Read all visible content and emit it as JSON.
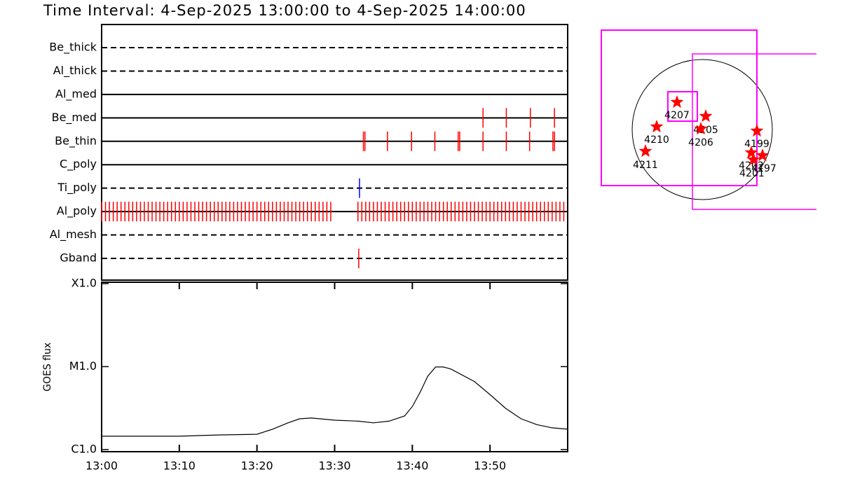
{
  "chart_data": [
    {
      "type": "timeline",
      "title": "Time Interval:  4-Sep-2025 13:00:00 to  4-Sep-2025 14:00:00",
      "xlim": [
        0,
        60
      ],
      "rows": [
        {
          "name": "Be_thick",
          "line": "dashed",
          "color": "#ff0000",
          "times": []
        },
        {
          "name": "Al_thick",
          "line": "dashed",
          "color": "#ff0000",
          "times": []
        },
        {
          "name": "Al_med",
          "line": "solid",
          "color": "#ff0000",
          "times": []
        },
        {
          "name": "Be_med",
          "line": "solid",
          "color": "#ff0000",
          "times": [
            49.1,
            52.1,
            55.2,
            58.3
          ]
        },
        {
          "name": "Be_thin",
          "line": "solid",
          "color": "#ff0000",
          "times": [
            33.7,
            33.9,
            36.8,
            39.9,
            42.9,
            45.9,
            46.1,
            49.1,
            52.1,
            55.1,
            58.1,
            58.3
          ]
        },
        {
          "name": "C_poly",
          "line": "solid",
          "color": "#ff0000",
          "times": []
        },
        {
          "name": "Ti_poly",
          "line": "dashed",
          "color": "#0000ff",
          "times": [
            33.2
          ]
        },
        {
          "name": "Al_poly",
          "line": "solid",
          "color": "#ff0000",
          "times": [
            0,
            0.5,
            1,
            1.5,
            2,
            2.5,
            3,
            3.5,
            4,
            4.5,
            5,
            5.5,
            6,
            6.5,
            7,
            7.5,
            8,
            8.5,
            9,
            9.5,
            10,
            10.5,
            11,
            11.5,
            12,
            12.5,
            13,
            13.5,
            14,
            14.5,
            15,
            15.5,
            16,
            16.5,
            17,
            17.5,
            18,
            18.5,
            19,
            19.5,
            20,
            20.5,
            21,
            21.5,
            22,
            22.5,
            23,
            23.5,
            24,
            24.5,
            25,
            25.5,
            26,
            26.5,
            27,
            27.5,
            28,
            28.5,
            29,
            29.5,
            33,
            33.5,
            34,
            34.5,
            35,
            35.5,
            36,
            36.5,
            37,
            37.5,
            38,
            38.5,
            39,
            39.5,
            40,
            40.5,
            41,
            41.5,
            42,
            42.5,
            43,
            43.5,
            44,
            44.5,
            45,
            45.5,
            46,
            46.5,
            47,
            47.5,
            48,
            48.5,
            49,
            49.5,
            50,
            50.5,
            51,
            51.5,
            52,
            52.5,
            53,
            53.5,
            54,
            54.5,
            55,
            55.5,
            56,
            56.5,
            57,
            57.5,
            58,
            58.5,
            59,
            59.5
          ]
        },
        {
          "name": "Al_mesh",
          "line": "dashed",
          "color": "#ff0000",
          "times": []
        },
        {
          "name": "Gband",
          "line": "dashed",
          "color": "#ff0000",
          "times": [
            33.1
          ]
        }
      ]
    },
    {
      "type": "line",
      "ylabel": "GOES flux",
      "log": true,
      "xlim": [
        0,
        60
      ],
      "xticks": [
        {
          "value": 0,
          "label": "13:00"
        },
        {
          "value": 10,
          "label": "13:10"
        },
        {
          "value": 20,
          "label": "13:20"
        },
        {
          "value": 30,
          "label": "13:30"
        },
        {
          "value": 40,
          "label": "13:40"
        },
        {
          "value": 50,
          "label": "13:50"
        }
      ],
      "ylim": [
        1e-06,
        0.0001
      ],
      "yticks": [
        {
          "value": 1e-06,
          "label": "C1.0"
        },
        {
          "value": 1e-05,
          "label": "M1.0"
        },
        {
          "value": 0.0001,
          "label": "X1.0"
        }
      ],
      "x": [
        0,
        10,
        15,
        20,
        22,
        24,
        25.5,
        27,
        30,
        33,
        35,
        37,
        39,
        40,
        41,
        42,
        43,
        44,
        45,
        48,
        50,
        52,
        54,
        56,
        58,
        60
      ],
      "series": [
        {
          "color": "#000000",
          "values": [
            1.45e-06,
            1.45e-06,
            1.5e-06,
            1.53e-06,
            1.76e-06,
            2.1e-06,
            2.35e-06,
            2.4e-06,
            2.26e-06,
            2.2e-06,
            2.1e-06,
            2.2e-06,
            2.54e-06,
            3.3e-06,
            4.9e-06,
            7.7e-06,
            9.9e-06,
            9.9e-06,
            9.3e-06,
            6.6e-06,
            4.6e-06,
            3.15e-06,
            2.35e-06,
            2e-06,
            1.83e-06,
            1.76e-06
          ]
        }
      ]
    }
  ],
  "map": {
    "regions": [
      "4207",
      "4205",
      "4206",
      "4210",
      "4211",
      "4199",
      "4202",
      "4201",
      "4197"
    ]
  }
}
